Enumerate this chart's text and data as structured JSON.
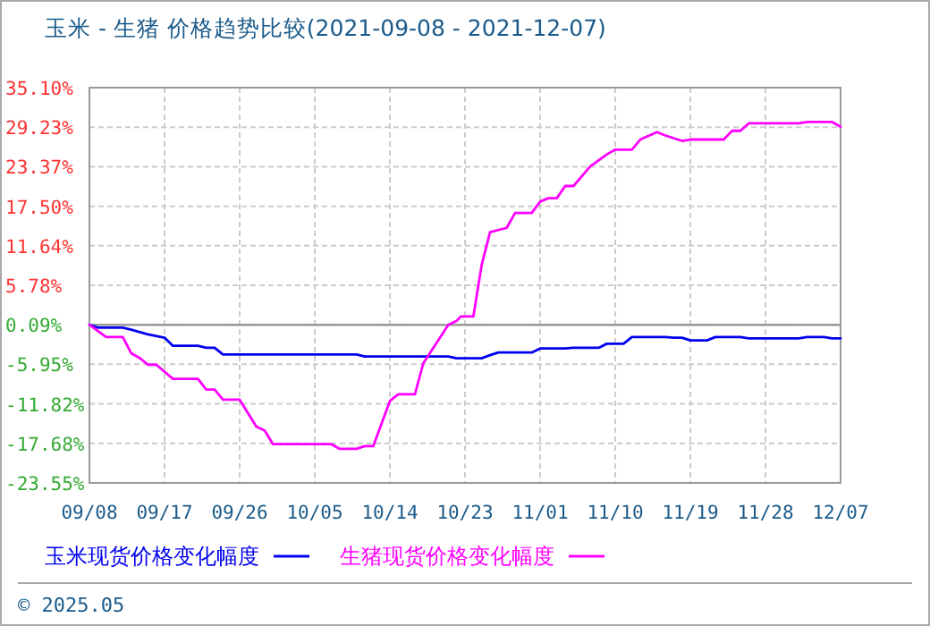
{
  "chart_data": {
    "type": "line",
    "title": "玉米 - 生猪 价格趋势比较(2021-09-08 - 2021-12-07)",
    "xlim": [
      "2021-09-08",
      "2021-12-07"
    ],
    "xticks": [
      {
        "value": "2021-09-08",
        "label": "09/08"
      },
      {
        "value": "2021-09-17",
        "label": "09/17"
      },
      {
        "value": "2021-09-26",
        "label": "09/26"
      },
      {
        "value": "2021-10-05",
        "label": "10/05"
      },
      {
        "value": "2021-10-14",
        "label": "10/14"
      },
      {
        "value": "2021-10-23",
        "label": "10/23"
      },
      {
        "value": "2021-11-01",
        "label": "11/01"
      },
      {
        "value": "2021-11-10",
        "label": "11/10"
      },
      {
        "value": "2021-11-19",
        "label": "11/19"
      },
      {
        "value": "2021-11-28",
        "label": "11/28"
      },
      {
        "value": "2021-12-07",
        "label": "12/07"
      }
    ],
    "ylim": [
      -23.55,
      35.1
    ],
    "yticks": [
      {
        "value": -23.55,
        "label": "-23.55%"
      },
      {
        "value": -17.68,
        "label": "-17.68%"
      },
      {
        "value": -11.82,
        "label": "-11.82%"
      },
      {
        "value": -5.95,
        "label": "-5.95%"
      },
      {
        "value": -0.09,
        "label": "0.09%"
      },
      {
        "value": 5.78,
        "label": "5.78%"
      },
      {
        "value": 11.64,
        "label": "11.64%"
      },
      {
        "value": 17.5,
        "label": "17.50%"
      },
      {
        "value": 23.37,
        "label": "23.37%"
      },
      {
        "value": 29.23,
        "label": "29.23%"
      },
      {
        "value": 35.1,
        "label": "35.10%"
      }
    ],
    "grid": true,
    "legend": "bottom",
    "ref_lines": [
      {
        "axis": "y",
        "value": -0.09,
        "color": "#999999"
      }
    ],
    "annotations": [
      "© 2025.05"
    ],
    "series": [
      {
        "name": "玉米现货价格变化幅度",
        "color": "#0000ee",
        "x": [
          "2021-09-08",
          "2021-09-09",
          "2021-09-12",
          "2021-09-13",
          "2021-09-15",
          "2021-09-17",
          "2021-09-18",
          "2021-09-21",
          "2021-09-22",
          "2021-09-23",
          "2021-09-24",
          "2021-10-10",
          "2021-10-11",
          "2021-10-21",
          "2021-10-22",
          "2021-10-25",
          "2021-10-26",
          "2021-10-27",
          "2021-10-31",
          "2021-11-01",
          "2021-11-04",
          "2021-11-05",
          "2021-11-08",
          "2021-11-09",
          "2021-11-11",
          "2021-11-12",
          "2021-11-16",
          "2021-11-17",
          "2021-11-18",
          "2021-11-19",
          "2021-11-21",
          "2021-11-22",
          "2021-11-25",
          "2021-11-26",
          "2021-12-02",
          "2021-12-03",
          "2021-12-05",
          "2021-12-06",
          "2021-12-07"
        ],
        "values": [
          -0.09,
          -0.5,
          -0.5,
          -0.8,
          -1.5,
          -2.0,
          -3.2,
          -3.2,
          -3.5,
          -3.5,
          -4.5,
          -4.5,
          -4.8,
          -4.8,
          -5.05,
          -5.05,
          -4.6,
          -4.2,
          -4.2,
          -3.6,
          -3.6,
          -3.5,
          -3.5,
          -2.9,
          -2.9,
          -1.9,
          -1.9,
          -2.0,
          -2.0,
          -2.4,
          -2.4,
          -1.9,
          -1.9,
          -2.1,
          -2.1,
          -1.9,
          -1.9,
          -2.1,
          -2.1
        ]
      },
      {
        "name": "生猪现货价格变化幅度",
        "color": "#ff00ff",
        "x": [
          "2021-09-08",
          "2021-09-10",
          "2021-09-12",
          "2021-09-13",
          "2021-09-14",
          "2021-09-15",
          "2021-09-16",
          "2021-09-18",
          "2021-09-21",
          "2021-09-22",
          "2021-09-23",
          "2021-09-24",
          "2021-09-26",
          "2021-09-28",
          "2021-09-29",
          "2021-09-30",
          "2021-10-07",
          "2021-10-08",
          "2021-10-10",
          "2021-10-11",
          "2021-10-12",
          "2021-10-14",
          "2021-10-15",
          "2021-10-17",
          "2021-10-18",
          "2021-10-21",
          "2021-10-22",
          "2021-10-22T12:00",
          "2021-10-24",
          "2021-10-25",
          "2021-10-26",
          "2021-10-28",
          "2021-10-29",
          "2021-10-31",
          "2021-11-01",
          "2021-11-02",
          "2021-11-03",
          "2021-11-04",
          "2021-11-05",
          "2021-11-07",
          "2021-11-09",
          "2021-11-10",
          "2021-11-12",
          "2021-11-13",
          "2021-11-15",
          "2021-11-16",
          "2021-11-18",
          "2021-11-19",
          "2021-11-23",
          "2021-11-24",
          "2021-11-25",
          "2021-11-26",
          "2021-12-02",
          "2021-12-03",
          "2021-12-06",
          "2021-12-07"
        ],
        "values": [
          -0.09,
          -1.9,
          -1.9,
          -4.3,
          -5.0,
          -6.0,
          -6.0,
          -8.1,
          -8.1,
          -9.7,
          -9.7,
          -11.2,
          -11.2,
          -15.2,
          -15.8,
          -17.8,
          -17.8,
          -18.5,
          -18.5,
          -18.1,
          -18.1,
          -11.4,
          -10.4,
          -10.4,
          -5.8,
          -0.09,
          0.5,
          1.15,
          1.15,
          8.8,
          13.65,
          14.3,
          16.5,
          16.5,
          18.2,
          18.7,
          18.7,
          20.5,
          20.5,
          23.4,
          25.2,
          25.9,
          25.9,
          27.4,
          28.5,
          28.0,
          27.2,
          27.4,
          27.4,
          28.7,
          28.7,
          29.8,
          29.8,
          30.0,
          30.0,
          29.3
        ]
      }
    ]
  }
}
